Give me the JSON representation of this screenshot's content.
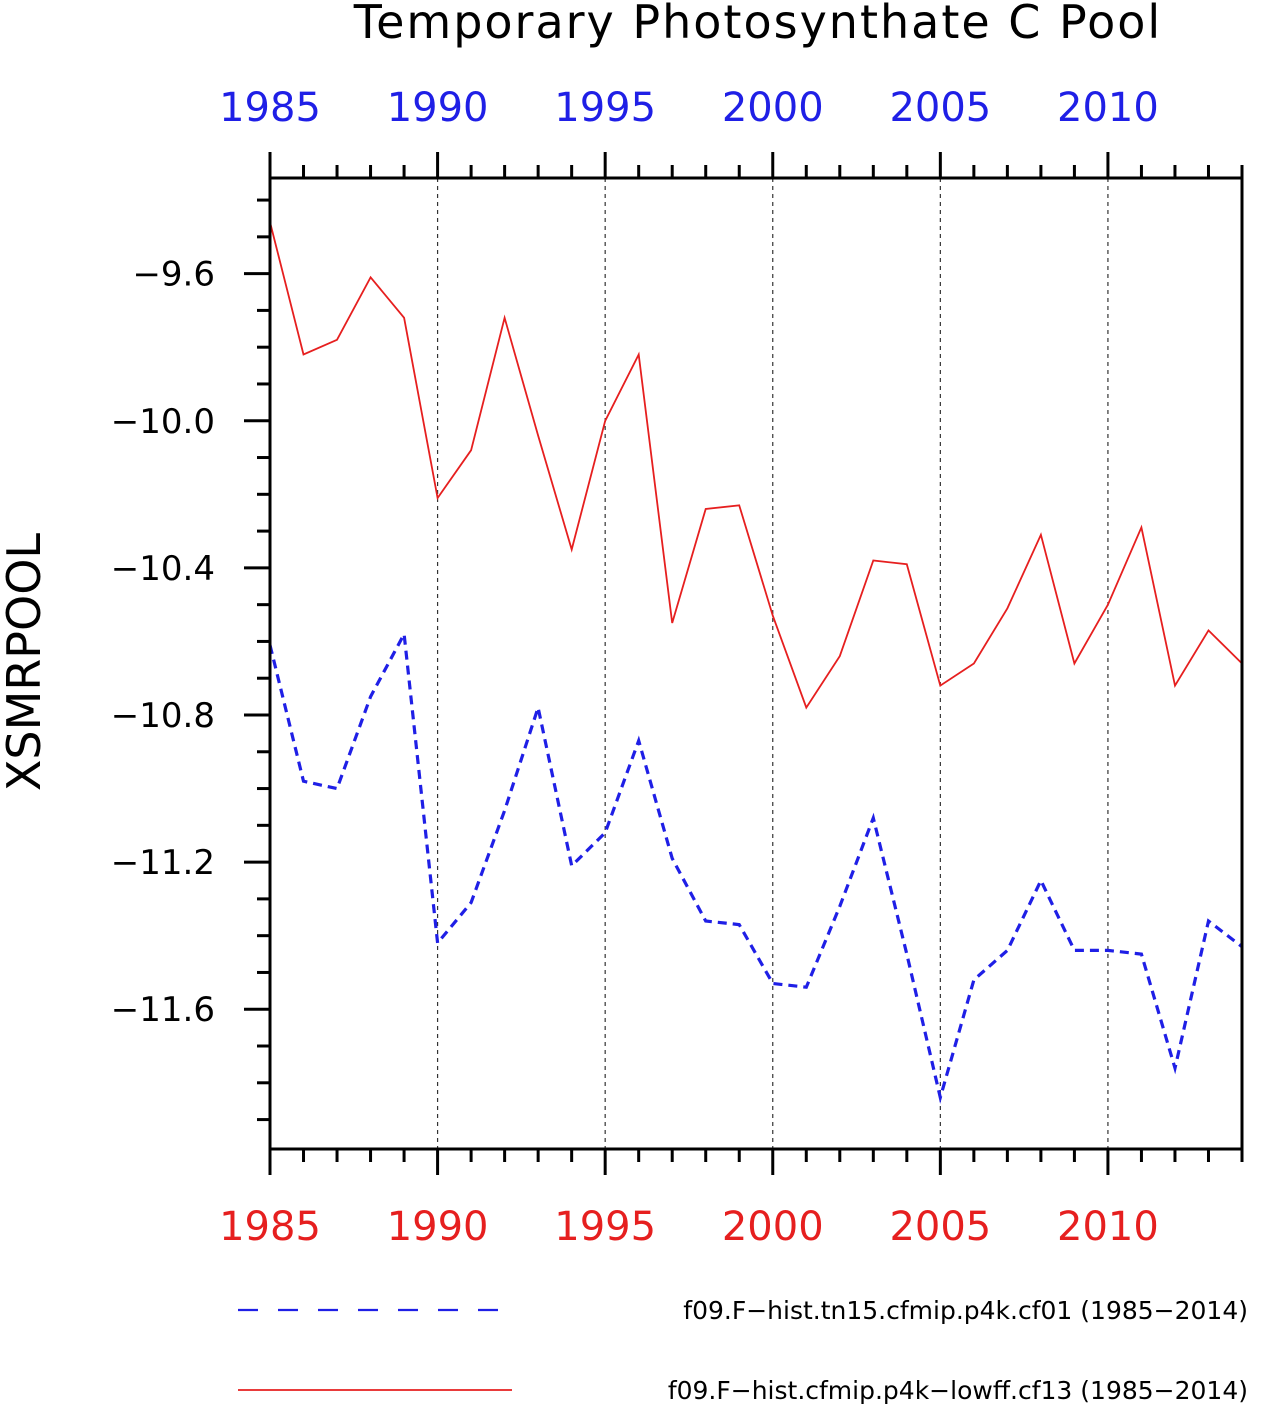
{
  "chart_data": {
    "type": "line",
    "title": "Temporary Photosynthate C Pool",
    "ylabel": "XSMRPOOL",
    "xlabel": "",
    "xlim": [
      1985,
      2014
    ],
    "ylim": [
      -11.98,
      -9.34
    ],
    "x_major_ticks": [
      1985,
      1990,
      1995,
      2000,
      2005,
      2010
    ],
    "x_tick_labels": [
      "1985",
      "1990",
      "1995",
      "2000",
      "2005",
      "2010"
    ],
    "y_major_ticks": [
      -9.6,
      -10.0,
      -10.4,
      -10.8,
      -11.2,
      -11.6
    ],
    "y_tick_labels": [
      "−9.6",
      "−10.0",
      "−10.4",
      "−10.8",
      "−11.2",
      "−11.6"
    ],
    "y_minor_step": 0.1,
    "grid": "vertical dashed lines at major x ticks",
    "top_axis_color": "#1f1fe6",
    "bottom_axis_color": "#e61f1f",
    "legend_position": "bottom",
    "x": [
      1985,
      1986,
      1987,
      1988,
      1989,
      1990,
      1991,
      1992,
      1993,
      1994,
      1995,
      1996,
      1997,
      1998,
      1999,
      2000,
      2001,
      2002,
      2003,
      2004,
      2005,
      2006,
      2007,
      2008,
      2009,
      2010,
      2011,
      2012,
      2013,
      2014
    ],
    "series": [
      {
        "name": "f09.F−hist.tn15.cfmip.p4k.cf01 (1985−2014)",
        "color": "#1f1fe6",
        "style": "dashed",
        "values": [
          -10.61,
          -10.98,
          -11.0,
          -10.75,
          -10.58,
          -11.42,
          -11.31,
          -11.06,
          -10.78,
          -11.21,
          -11.12,
          -10.87,
          -11.19,
          -11.36,
          -11.37,
          -11.53,
          -11.54,
          -11.32,
          -11.08,
          -11.45,
          -11.84,
          -11.52,
          -11.44,
          -11.25,
          -11.44,
          -11.44,
          -11.45,
          -11.76,
          -11.36,
          -11.43
        ]
      },
      {
        "name": "f09.F−hist.cfmip.p4k−lowff.cf13 (1985−2014)",
        "color": "#e61f1f",
        "style": "solid",
        "values": [
          -9.46,
          -9.82,
          -9.78,
          -9.61,
          -9.72,
          -10.21,
          -10.08,
          -9.72,
          -10.04,
          -10.35,
          -10.0,
          -9.82,
          -10.55,
          -10.24,
          -10.23,
          -10.53,
          -10.78,
          -10.64,
          -10.38,
          -10.39,
          -10.72,
          -10.66,
          -10.51,
          -10.31,
          -10.66,
          -10.5,
          -10.29,
          -10.72,
          -10.57,
          -10.66
        ]
      }
    ]
  }
}
